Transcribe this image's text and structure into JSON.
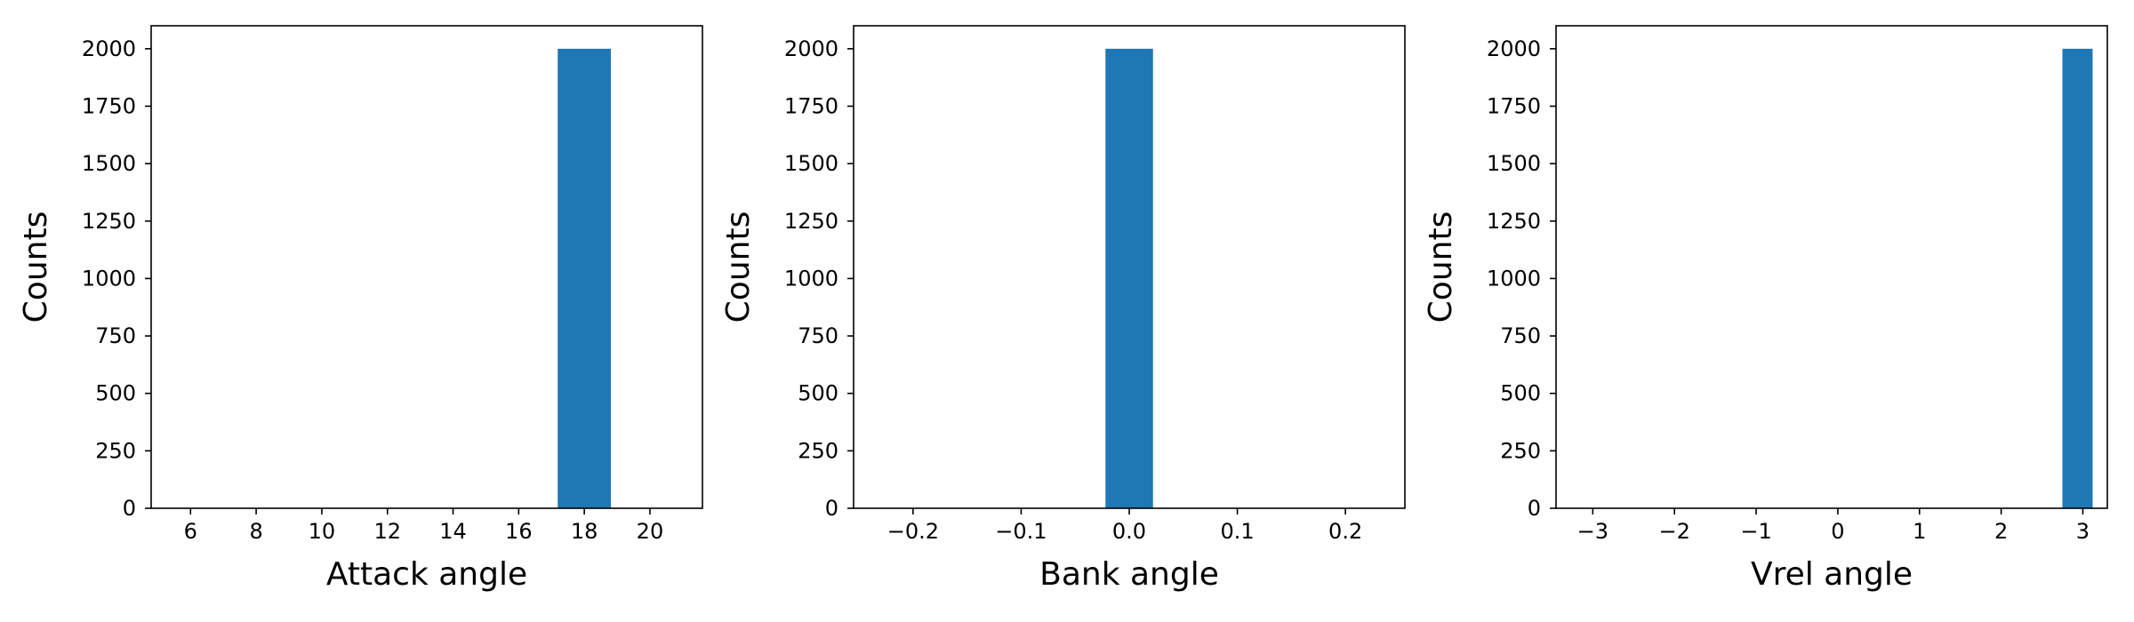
{
  "chart_data": [
    {
      "type": "bar",
      "title": "",
      "xlabel": "Attack angle",
      "ylabel": "Counts",
      "xlim": [
        4.8,
        21.6
      ],
      "ylim": [
        0,
        2100
      ],
      "xticks": [
        6,
        8,
        10,
        12,
        14,
        16,
        18,
        20
      ],
      "xtick_labels": [
        "6",
        "8",
        "10",
        "12",
        "14",
        "16",
        "18",
        "20"
      ],
      "yticks": [
        0,
        250,
        500,
        750,
        1000,
        1250,
        1500,
        1750,
        2000
      ],
      "ytick_labels": [
        "0",
        "250",
        "500",
        "750",
        "1000",
        "1250",
        "1500",
        "1750",
        "2000"
      ],
      "grid": false,
      "bars": [
        {
          "x0": 17.19,
          "x1": 18.81,
          "value": 2000
        }
      ],
      "color": "#1f77b4"
    },
    {
      "type": "bar",
      "title": "",
      "xlabel": "Bank angle",
      "ylabel": "Counts",
      "xlim": [
        -0.255,
        0.255
      ],
      "ylim": [
        0,
        2100
      ],
      "xticks": [
        -0.2,
        -0.1,
        0.0,
        0.1,
        0.2
      ],
      "xtick_labels": [
        "−0.2",
        "−0.1",
        "0.0",
        "0.1",
        "0.2"
      ],
      "yticks": [
        0,
        250,
        500,
        750,
        1000,
        1250,
        1500,
        1750,
        2000
      ],
      "ytick_labels": [
        "0",
        "250",
        "500",
        "750",
        "1000",
        "1250",
        "1500",
        "1750",
        "2000"
      ],
      "grid": false,
      "bars": [
        {
          "x0": -0.022,
          "x1": 0.022,
          "value": 2000
        }
      ],
      "color": "#1f77b4"
    },
    {
      "type": "bar",
      "title": "",
      "xlabel": "Vrel angle",
      "ylabel": "Counts",
      "xlim": [
        -3.45,
        3.3
      ],
      "ylim": [
        0,
        2100
      ],
      "xticks": [
        -3,
        -2,
        -1,
        0,
        1,
        2,
        3
      ],
      "xtick_labels": [
        "−3",
        "−2",
        "−1",
        "0",
        "1",
        "2",
        "3"
      ],
      "yticks": [
        0,
        250,
        500,
        750,
        1000,
        1250,
        1500,
        1750,
        2000
      ],
      "ytick_labels": [
        "0",
        "250",
        "500",
        "750",
        "1000",
        "1250",
        "1500",
        "1750",
        "2000"
      ],
      "grid": false,
      "bars": [
        {
          "x0": 2.75,
          "x1": 3.12,
          "value": 2000
        }
      ],
      "color": "#1f77b4"
    }
  ]
}
